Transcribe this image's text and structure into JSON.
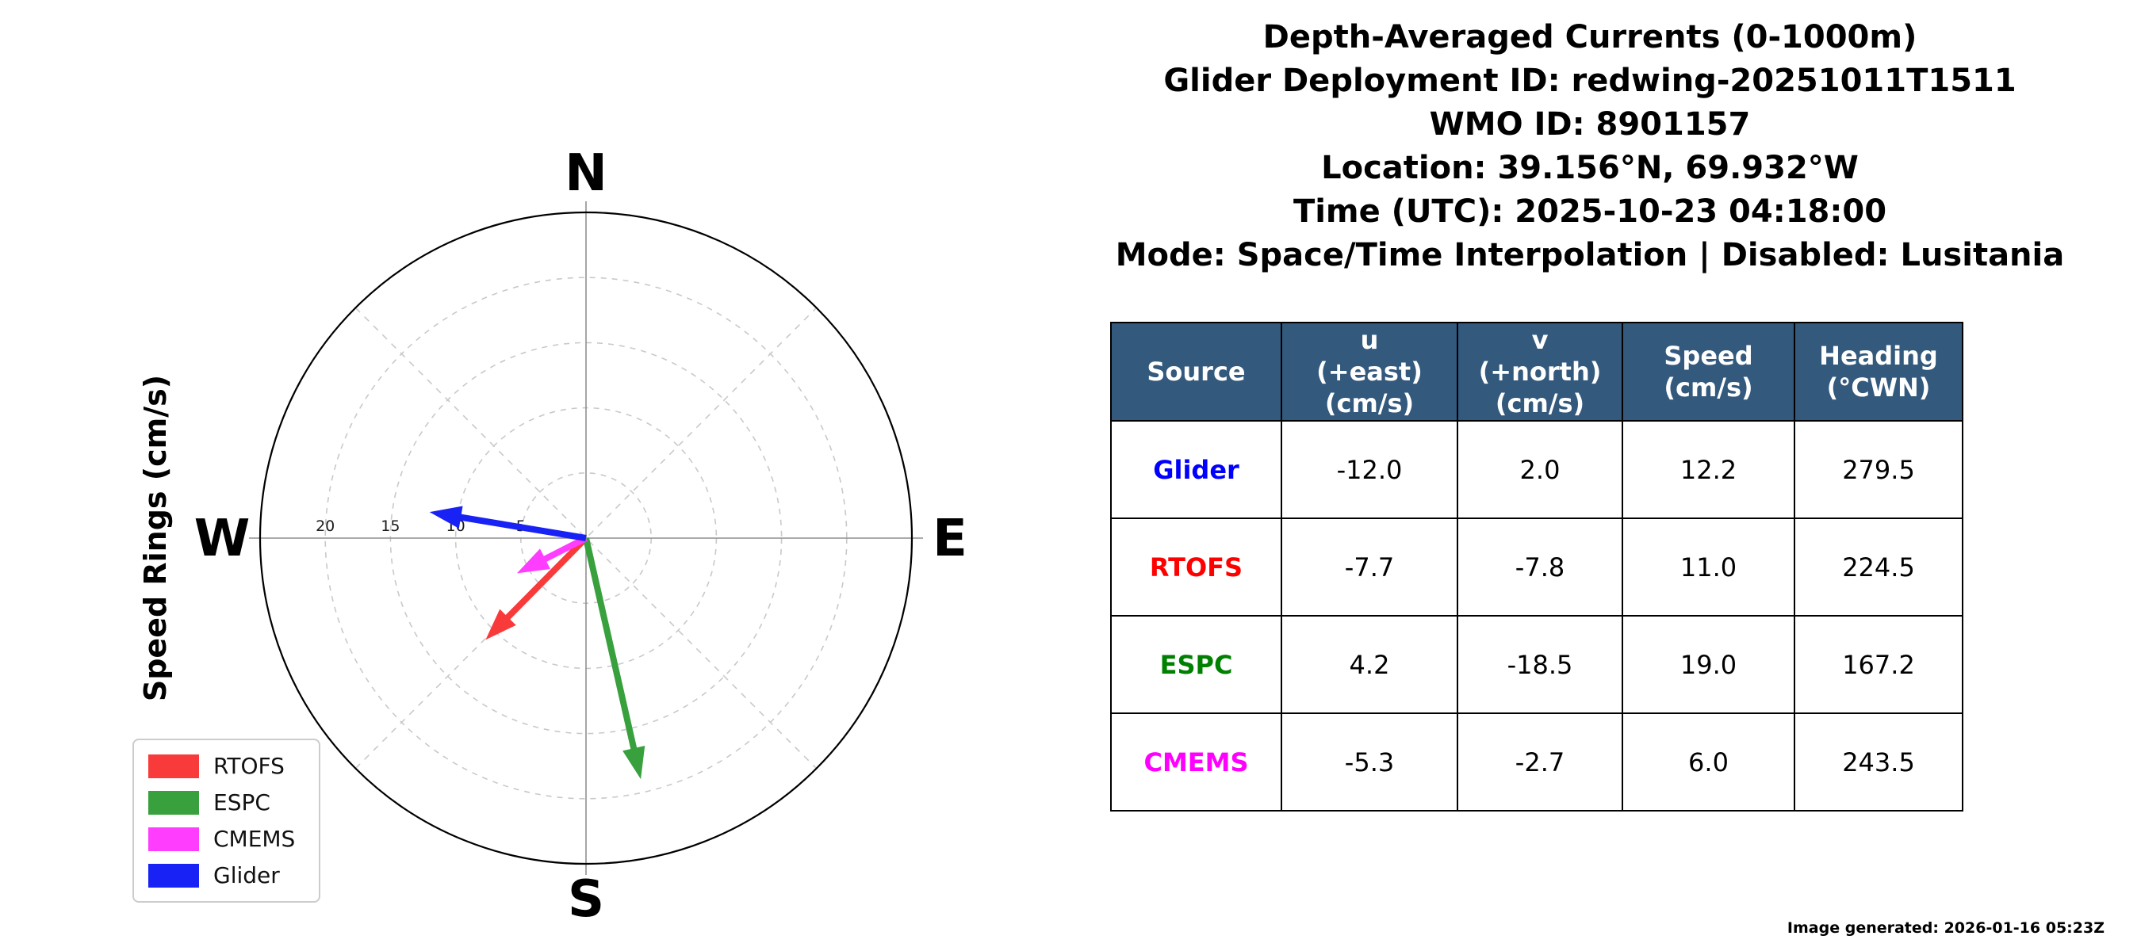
{
  "title_block": {
    "line1": "Depth-Averaged Currents (0-1000m)",
    "line2": "Glider Deployment ID: redwing-20251011T1511",
    "line3": "WMO ID: 8901157",
    "line4": "Location: 39.156°N, 69.932°W",
    "line5": "Time (UTC): 2025-10-23 04:18:00",
    "line6": "Mode: Space/Time Interpolation | Disabled: Lusitania"
  },
  "chart_data": {
    "type": "polar-vector",
    "axis_label": "Speed Rings (cm/s)",
    "cardinal_labels": {
      "north": "N",
      "east": "E",
      "south": "S",
      "west": "W"
    },
    "ring_values_cms": [
      5,
      10,
      15,
      20
    ],
    "outer_ring_cms": 25,
    "ring_tick_labels": [
      "20",
      "15",
      "10",
      "5"
    ],
    "ring_tick_radii_cms": [
      20,
      15,
      10,
      5
    ],
    "grid": "dashed rings every 5 cm/s with 45-degree dashed radials",
    "legend_position": "lower left",
    "series": [
      {
        "name": "RTOFS",
        "color": "#f93a3a",
        "u": -7.7,
        "v": -7.8
      },
      {
        "name": "ESPC",
        "color": "#38a03c",
        "u": 4.2,
        "v": -18.5
      },
      {
        "name": "CMEMS",
        "color": "#ff3dff",
        "u": -5.3,
        "v": -2.7
      },
      {
        "name": "Glider",
        "color": "#1822f5",
        "u": -12.0,
        "v": 2.0
      }
    ]
  },
  "table": {
    "headers": [
      "Source",
      "u\n(+east)\n(cm/s)",
      "v\n(+north)\n(cm/s)",
      "Speed\n(cm/s)",
      "Heading\n(°CWN)"
    ],
    "header_bg": "#33597d",
    "rows": [
      {
        "source": "Glider",
        "color": "#0000ff",
        "u": "-12.0",
        "v": "2.0",
        "speed": "12.2",
        "heading": "279.5"
      },
      {
        "source": "RTOFS",
        "color": "#ff0000",
        "u": "-7.7",
        "v": "-7.8",
        "speed": "11.0",
        "heading": "224.5"
      },
      {
        "source": "ESPC",
        "color": "#008000",
        "u": "4.2",
        "v": "-18.5",
        "speed": "19.0",
        "heading": "167.2"
      },
      {
        "source": "CMEMS",
        "color": "#ff00ff",
        "u": "-5.3",
        "v": "-2.7",
        "speed": "6.0",
        "heading": "243.5"
      }
    ]
  },
  "footer": {
    "generated": "Image generated: 2026-01-16 05:23Z"
  }
}
